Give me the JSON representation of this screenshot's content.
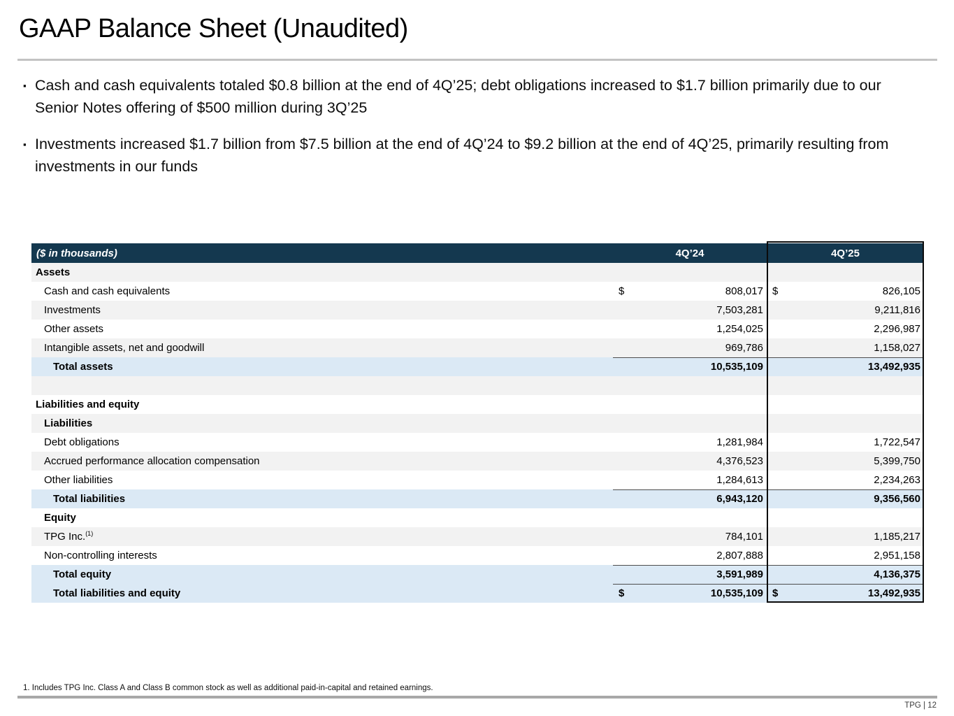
{
  "slide": {
    "title": "GAAP Balance Sheet (Unaudited)",
    "bullet_marker": "▪",
    "bullets": [
      "Cash and cash equivalents totaled $0.8 billion at the end of 4Q’25; debt obligations increased to $1.7 billion primarily due to our Senior Notes offering of $500 million during 3Q’25",
      "Investments increased $1.7 billion from $7.5 billion at the end of 4Q’24 to $9.2 billion at the end of 4Q’25, primarily resulting from investments in our funds"
    ],
    "footnote": "1. Includes TPG Inc. Class A and Class B common stock as well as additional paid-in-capital and retained earnings.",
    "page_label": "TPG | 12"
  },
  "colors": {
    "header_navy": "#14384f",
    "row_gray": "#f2f2f2",
    "row_blue": "#dbe9f5",
    "highlight_box_border": "#0b0b0b",
    "total_rule": "#4d4d4d"
  },
  "table": {
    "unit_label": "($ in thousands)",
    "col_4q24": "4Q’24",
    "col_4q25": "4Q’25",
    "rows": [
      {
        "label": "Assets",
        "indent": 0,
        "bold": true,
        "bg": "gray",
        "v1": "",
        "v2": ""
      },
      {
        "label": "Cash and cash equivalents",
        "indent": 1,
        "bg": "white",
        "d1": "$",
        "v1": "808,017",
        "d2": "$",
        "v2": "826,105"
      },
      {
        "label": "Investments",
        "indent": 1,
        "bg": "gray",
        "v1": "7,503,281",
        "v2": "9,211,816"
      },
      {
        "label": "Other assets",
        "indent": 1,
        "bg": "white",
        "v1": "1,254,025",
        "v2": "2,296,987"
      },
      {
        "label": "Intangible assets, net and goodwill",
        "indent": 1,
        "bg": "gray",
        "v1": "969,786",
        "v2": "1,158,027"
      },
      {
        "label": "Total assets",
        "indent": 2,
        "bold": true,
        "bg": "blue",
        "v1": "10,535,109",
        "v2": "13,492,935",
        "topBorder": true
      },
      {
        "label": "",
        "indent": 0,
        "bg": "gray",
        "v1": "",
        "v2": ""
      },
      {
        "label": "Liabilities and equity",
        "indent": 0,
        "bold": true,
        "bg": "white",
        "v1": "",
        "v2": ""
      },
      {
        "label": "Liabilities",
        "indent": 1,
        "bold": true,
        "bg": "gray",
        "v1": "",
        "v2": ""
      },
      {
        "label": "Debt obligations",
        "indent": 1,
        "bg": "white",
        "v1": "1,281,984",
        "v2": "1,722,547"
      },
      {
        "label": "Accrued performance allocation compensation",
        "indent": 1,
        "bg": "gray",
        "v1": "4,376,523",
        "v2": "5,399,750"
      },
      {
        "label": "Other liabilities",
        "indent": 1,
        "bg": "white",
        "v1": "1,284,613",
        "v2": "2,234,263"
      },
      {
        "label": "Total liabilities",
        "indent": 2,
        "bold": true,
        "bg": "blue",
        "v1": "6,943,120",
        "v2": "9,356,560",
        "topBorder": true
      },
      {
        "label": "Equity",
        "indent": 1,
        "bold": true,
        "bg": "white",
        "v1": "",
        "v2": ""
      },
      {
        "label": "TPG Inc.",
        "sup": "(1)",
        "indent": 1,
        "bg": "gray",
        "v1": "784,101",
        "v2": "1,185,217"
      },
      {
        "label": "Non-controlling interests",
        "indent": 1,
        "bg": "white",
        "v1": "2,807,888",
        "v2": "2,951,158"
      },
      {
        "label": "Total equity",
        "indent": 2,
        "bold": true,
        "bg": "blue",
        "v1": "3,591,989",
        "v2": "4,136,375",
        "topBorder": true
      },
      {
        "label": "Total liabilities and equity",
        "indent": 2,
        "bold": true,
        "bg": "blue",
        "d1": "$",
        "v1": "10,535,109",
        "d2": "$",
        "v2": "13,492,935",
        "topBorder": true
      }
    ]
  }
}
